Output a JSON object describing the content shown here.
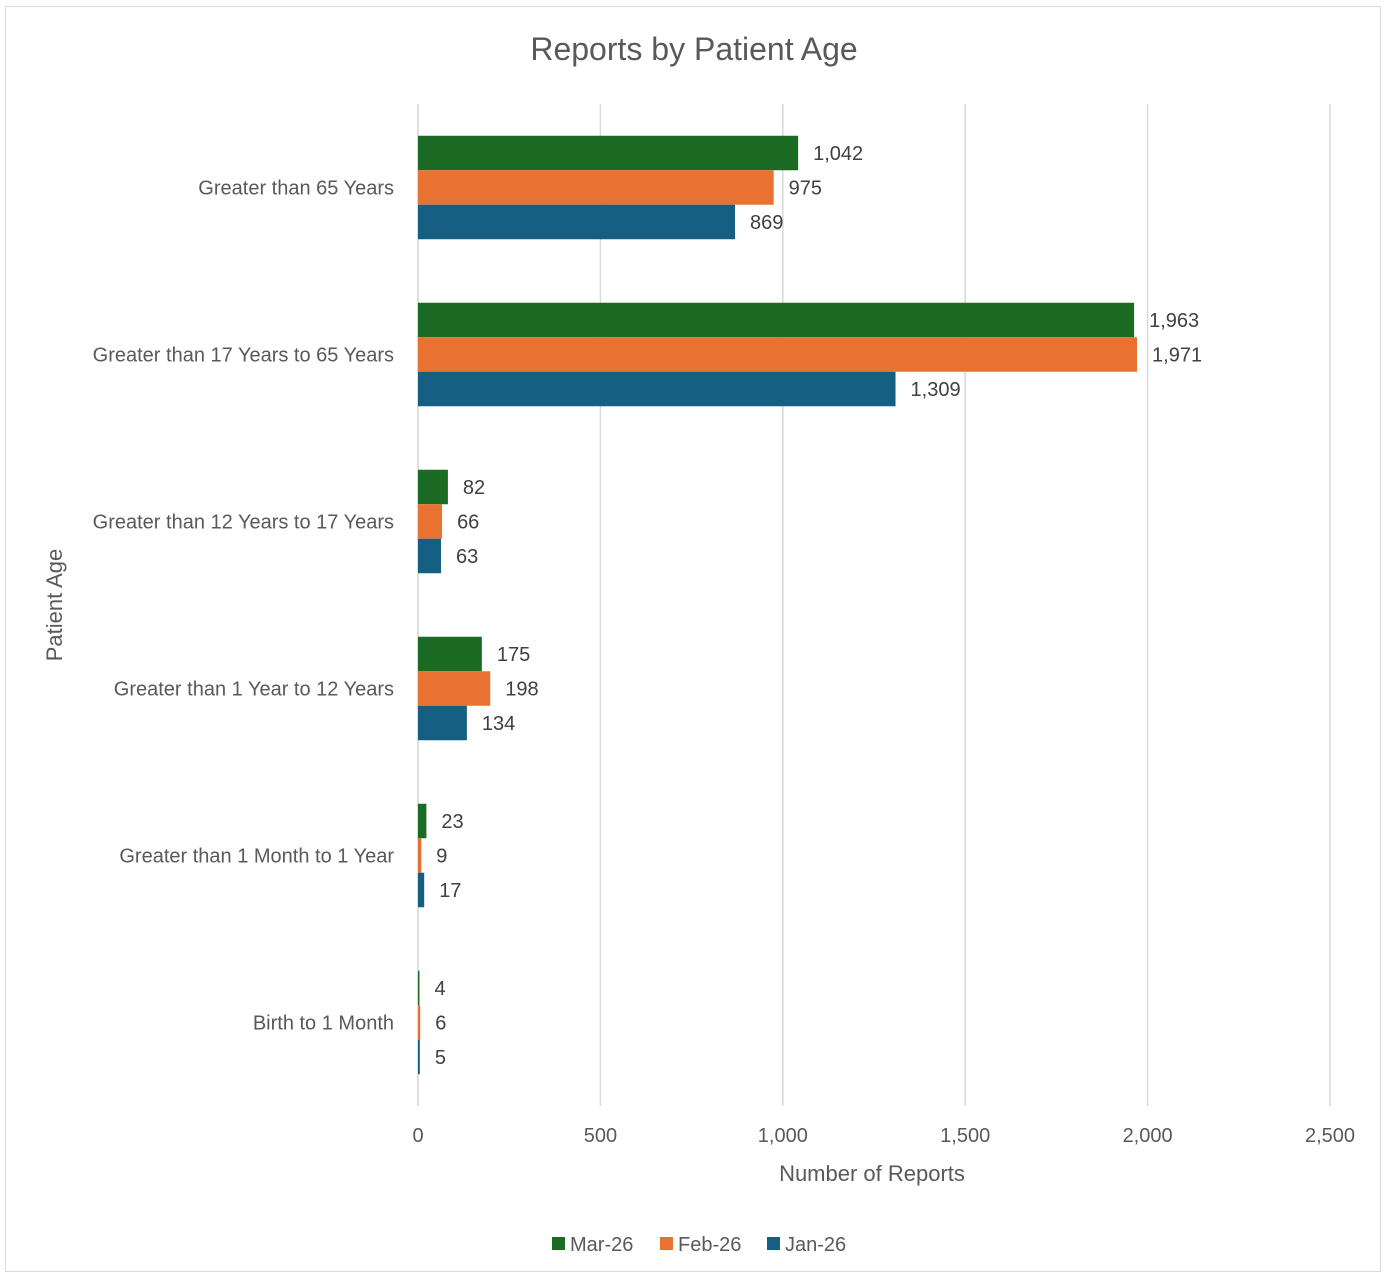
{
  "chart_data": {
    "type": "bar",
    "orientation": "horizontal",
    "title": "Reports by Patient Age",
    "xlabel": "Number of Reports",
    "ylabel": "Patient Age",
    "xlim": [
      0,
      2500
    ],
    "x_ticks": [
      0,
      500,
      1000,
      1500,
      2000,
      2500
    ],
    "x_tick_labels": [
      "0",
      "500",
      "1,000",
      "1,500",
      "2,000",
      "2,500"
    ],
    "grid": "vertical major gridlines",
    "legend_position": "bottom",
    "categories": [
      "Greater than 65 Years",
      "Greater than 17 Years to 65 Years",
      "Greater than 12 Years to 17 Years",
      "Greater than 1 Year to 12 Years",
      "Greater than 1 Month to 1 Year",
      "Birth to 1 Month"
    ],
    "series": [
      {
        "name": "Mar-26",
        "color": "#1b6b24",
        "values": [
          1042,
          1963,
          82,
          175,
          23,
          4
        ],
        "labels": [
          "1,042",
          "1,963",
          "82",
          "175",
          "23",
          "4"
        ]
      },
      {
        "name": "Feb-26",
        "color": "#e97132",
        "values": [
          975,
          1971,
          66,
          198,
          9,
          6
        ],
        "labels": [
          "975",
          "1,971",
          "66",
          "198",
          "9",
          "6"
        ]
      },
      {
        "name": "Jan-26",
        "color": "#156082",
        "values": [
          869,
          1309,
          63,
          134,
          17,
          5
        ],
        "labels": [
          "869",
          "1,309",
          "63",
          "134",
          "17",
          "5"
        ]
      }
    ]
  }
}
